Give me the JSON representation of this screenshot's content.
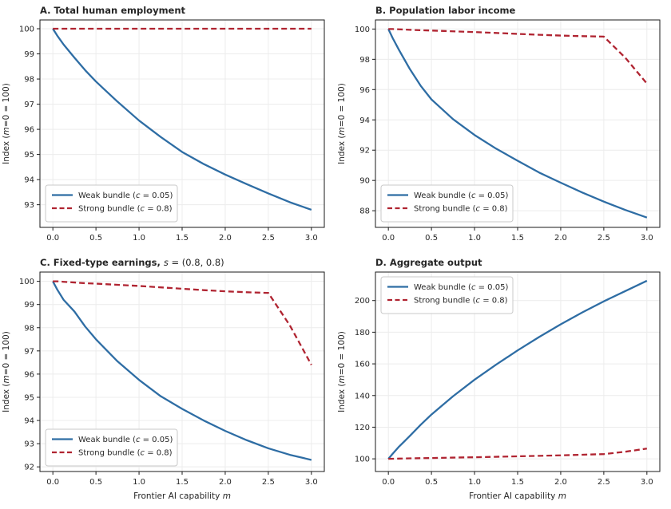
{
  "figure": {
    "background": "#ffffff",
    "colors": {
      "weak_line": "#2e6da4",
      "strong_line": "#b02431",
      "grid": "#ececec",
      "spine": "#1a1a1a",
      "text": "#262626",
      "legend_border": "#c9c9c9",
      "legend_bg": "#ffffff"
    }
  },
  "chart_data": [
    {
      "type": "line",
      "panel": "A",
      "title_parts": [
        {
          "t": "A.  Total human employment",
          "b": true
        }
      ],
      "ylabel_parts": [
        {
          "t": "Index ("
        },
        {
          "t": "m",
          "i": true
        },
        {
          "t": "=0 = 100)"
        }
      ],
      "xlabel_parts": null,
      "xlim": [
        -0.15,
        3.15
      ],
      "ylim": [
        92.1,
        100.35
      ],
      "xticks": [
        0,
        0.5,
        1,
        1.5,
        2,
        2.5,
        3
      ],
      "xtick_labels": [
        "0.0",
        "0.5",
        "1.0",
        "1.5",
        "2.0",
        "2.5",
        "3.0"
      ],
      "yticks": [
        93,
        94,
        95,
        96,
        97,
        98,
        99,
        100
      ],
      "ytick_labels": [
        "93",
        "94",
        "95",
        "96",
        "97",
        "98",
        "99",
        "100"
      ],
      "legend_loc": "lower-left",
      "x": [
        0,
        0.05,
        0.125,
        0.25,
        0.375,
        0.5,
        0.75,
        1.0,
        1.25,
        1.5,
        1.75,
        2.0,
        2.25,
        2.5,
        2.75,
        3.0
      ],
      "series": [
        {
          "key": "weak-bundle",
          "name_parts": [
            {
              "t": "Weak bundle ("
            },
            {
              "t": "c",
              "i": true
            },
            {
              "t": " = 0.05)"
            }
          ],
          "color": "#2e6da4",
          "dash": null,
          "y": [
            100,
            99.73,
            99.37,
            98.85,
            98.35,
            97.9,
            97.1,
            96.35,
            95.7,
            95.1,
            94.62,
            94.2,
            93.82,
            93.45,
            93.1,
            92.8
          ]
        },
        {
          "key": "strong-bundle",
          "name_parts": [
            {
              "t": "Strong bundle ("
            },
            {
              "t": "c",
              "i": true
            },
            {
              "t": " = 0.8)"
            }
          ],
          "color": "#b02431",
          "dash": "7,4",
          "y": [
            100,
            100,
            100,
            100,
            100,
            100,
            100,
            100,
            100,
            100,
            100,
            100,
            100,
            100,
            100,
            100
          ]
        }
      ]
    },
    {
      "type": "line",
      "panel": "B",
      "title_parts": [
        {
          "t": "B.  Population labor income",
          "b": true
        }
      ],
      "ylabel_parts": [
        {
          "t": "Index ("
        },
        {
          "t": "m",
          "i": true
        },
        {
          "t": "=0 = 100)"
        }
      ],
      "xlabel_parts": null,
      "xlim": [
        -0.15,
        3.15
      ],
      "ylim": [
        86.9,
        100.6
      ],
      "xticks": [
        0,
        0.5,
        1,
        1.5,
        2,
        2.5,
        3
      ],
      "xtick_labels": [
        "0.0",
        "0.5",
        "1.0",
        "1.5",
        "2.0",
        "2.5",
        "3.0"
      ],
      "yticks": [
        88,
        90,
        92,
        94,
        96,
        98,
        100
      ],
      "ytick_labels": [
        "88",
        "90",
        "92",
        "94",
        "96",
        "98",
        "100"
      ],
      "legend_loc": "lower-left",
      "x": [
        0,
        0.05,
        0.125,
        0.25,
        0.375,
        0.5,
        0.75,
        1.0,
        1.25,
        1.5,
        1.75,
        2.0,
        2.25,
        2.5,
        2.75,
        3.0
      ],
      "series": [
        {
          "key": "weak-bundle",
          "name_parts": [
            {
              "t": "Weak bundle ("
            },
            {
              "t": "c",
              "i": true
            },
            {
              "t": " = 0.05)"
            }
          ],
          "color": "#2e6da4",
          "dash": null,
          "y": [
            100,
            99.4,
            98.6,
            97.35,
            96.25,
            95.35,
            94.05,
            93.0,
            92.1,
            91.3,
            90.52,
            89.85,
            89.2,
            88.6,
            88.05,
            87.55
          ]
        },
        {
          "key": "strong-bundle",
          "name_parts": [
            {
              "t": "Strong bundle ("
            },
            {
              "t": "c",
              "i": true
            },
            {
              "t": " = 0.8)"
            }
          ],
          "color": "#b02431",
          "dash": "7,4",
          "y": [
            100,
            100,
            99.98,
            99.95,
            99.92,
            99.9,
            99.85,
            99.8,
            99.74,
            99.68,
            99.62,
            99.57,
            99.53,
            99.5,
            98.1,
            96.4
          ]
        }
      ]
    },
    {
      "type": "line",
      "panel": "C",
      "title_parts": [
        {
          "t": "C.  Fixed-type earnings, ",
          "b": true
        },
        {
          "t": "s",
          "i": true
        },
        {
          "t": " = (0.8, 0.8)"
        }
      ],
      "ylabel_parts": [
        {
          "t": "Index ("
        },
        {
          "t": "m",
          "i": true
        },
        {
          "t": "=0 = 100)"
        }
      ],
      "xlabel_parts": [
        {
          "t": "Frontier AI capability "
        },
        {
          "t": "m",
          "i": true
        }
      ],
      "xlim": [
        -0.15,
        3.15
      ],
      "ylim": [
        91.8,
        100.4
      ],
      "xticks": [
        0,
        0.5,
        1,
        1.5,
        2,
        2.5,
        3
      ],
      "xtick_labels": [
        "0.0",
        "0.5",
        "1.0",
        "1.5",
        "2.0",
        "2.5",
        "3.0"
      ],
      "yticks": [
        92,
        93,
        94,
        95,
        96,
        97,
        98,
        99,
        100
      ],
      "ytick_labels": [
        "92",
        "93",
        "94",
        "95",
        "96",
        "97",
        "98",
        "99",
        "100"
      ],
      "legend_loc": "lower-left",
      "x": [
        0,
        0.05,
        0.125,
        0.25,
        0.375,
        0.5,
        0.75,
        1.0,
        1.25,
        1.5,
        1.75,
        2.0,
        2.25,
        2.5,
        2.75,
        3.0
      ],
      "series": [
        {
          "key": "weak-bundle",
          "name_parts": [
            {
              "t": "Weak bundle ("
            },
            {
              "t": "c",
              "i": true
            },
            {
              "t": " = 0.05)"
            }
          ],
          "color": "#2e6da4",
          "dash": null,
          "y": [
            100,
            99.65,
            99.2,
            98.7,
            98.05,
            97.5,
            96.55,
            95.75,
            95.05,
            94.5,
            94.0,
            93.55,
            93.15,
            92.8,
            92.52,
            92.3
          ]
        },
        {
          "key": "strong-bundle",
          "name_parts": [
            {
              "t": "Strong bundle ("
            },
            {
              "t": "c",
              "i": true
            },
            {
              "t": " = 0.8)"
            }
          ],
          "color": "#b02431",
          "dash": "7,4",
          "y": [
            100,
            100,
            99.98,
            99.95,
            99.92,
            99.9,
            99.85,
            99.8,
            99.74,
            99.68,
            99.62,
            99.57,
            99.53,
            99.5,
            98.1,
            96.4
          ]
        }
      ]
    },
    {
      "type": "line",
      "panel": "D",
      "title_parts": [
        {
          "t": "D.  Aggregate output",
          "b": true
        }
      ],
      "ylabel_parts": [
        {
          "t": "Index ("
        },
        {
          "t": "m",
          "i": true
        },
        {
          "t": "=0 = 100)"
        }
      ],
      "xlabel_parts": [
        {
          "t": "Frontier AI capability "
        },
        {
          "t": "m",
          "i": true
        }
      ],
      "xlim": [
        -0.15,
        3.15
      ],
      "ylim": [
        92,
        218
      ],
      "xticks": [
        0,
        0.5,
        1,
        1.5,
        2,
        2.5,
        3
      ],
      "xtick_labels": [
        "0.0",
        "0.5",
        "1.0",
        "1.5",
        "2.0",
        "2.5",
        "3.0"
      ],
      "yticks": [
        100,
        120,
        140,
        160,
        180,
        200
      ],
      "ytick_labels": [
        "100",
        "120",
        "140",
        "160",
        "180",
        "200"
      ],
      "legend_loc": "upper-left",
      "x": [
        0,
        0.05,
        0.125,
        0.25,
        0.375,
        0.5,
        0.75,
        1.0,
        1.25,
        1.5,
        1.75,
        2.0,
        2.25,
        2.5,
        2.75,
        3.0
      ],
      "series": [
        {
          "key": "weak-bundle",
          "name_parts": [
            {
              "t": "Weak bundle ("
            },
            {
              "t": "c",
              "i": true
            },
            {
              "t": " = 0.05)"
            }
          ],
          "color": "#2e6da4",
          "dash": null,
          "y": [
            100,
            103.2,
            107.8,
            114.5,
            121.5,
            128,
            139.5,
            150,
            159.5,
            168.5,
            177,
            185,
            192.5,
            199.5,
            206,
            212.5
          ]
        },
        {
          "key": "strong-bundle",
          "name_parts": [
            {
              "t": "Strong bundle ("
            },
            {
              "t": "c",
              "i": true
            },
            {
              "t": " = 0.8)"
            }
          ],
          "color": "#b02431",
          "dash": "7,4",
          "y": [
            100,
            100.05,
            100.15,
            100.3,
            100.4,
            100.5,
            100.8,
            101.0,
            101.3,
            101.6,
            101.9,
            102.2,
            102.6,
            103.0,
            104.5,
            106.5
          ]
        }
      ]
    }
  ]
}
